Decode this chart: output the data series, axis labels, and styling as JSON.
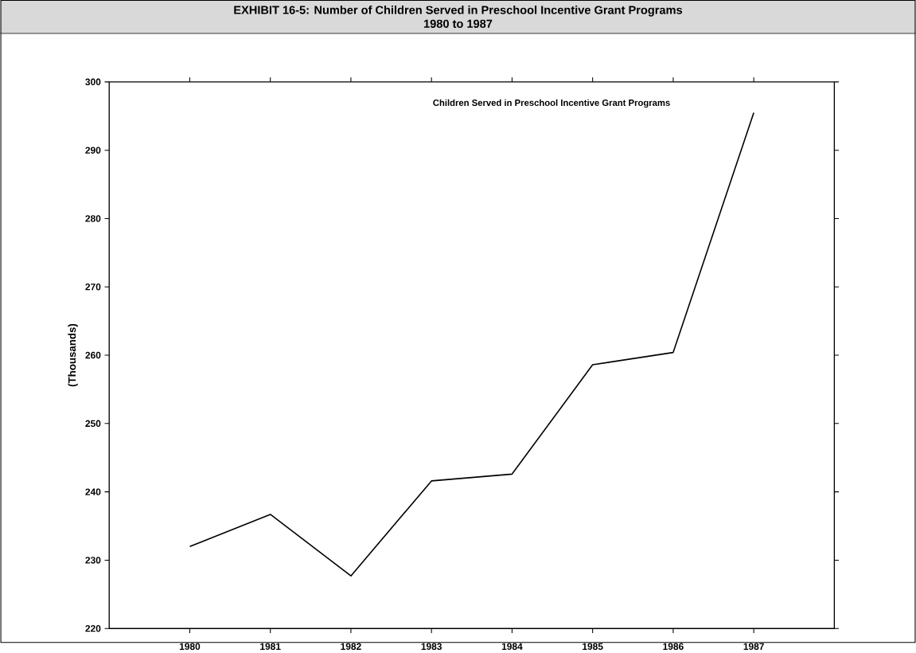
{
  "chart_data": {
    "type": "line",
    "title": "EXHIBIT 16-5: Number of Children Served in Preschool Incentive Grant Programs",
    "subtitle": "1980 to 1987",
    "ylabel": "(Thousands)",
    "annotations": [
      "Children Served in Preschool Incentive Grant Programs"
    ],
    "categories": [
      "1980",
      "1981",
      "1982",
      "1983",
      "1984",
      "1985",
      "1986",
      "1987"
    ],
    "values": [
      232,
      236.7,
      227.7,
      241.6,
      242.6,
      258.6,
      260.4,
      295.5
    ],
    "color": "#000000",
    "ylim": [
      220,
      300
    ],
    "yticks": [
      220,
      230,
      240,
      250,
      260,
      270,
      280,
      290,
      300
    ]
  }
}
